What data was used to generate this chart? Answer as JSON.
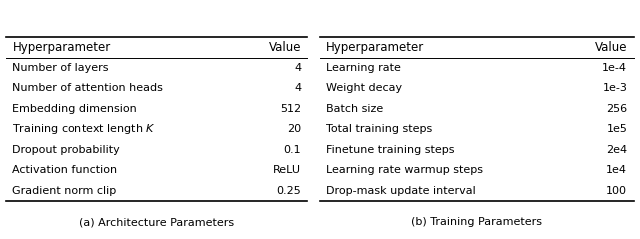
{
  "left_table": {
    "header": [
      "Hyperparameter",
      "Value"
    ],
    "rows": [
      [
        "Number of layers",
        "4"
      ],
      [
        "Number of attention heads",
        "4"
      ],
      [
        "Embedding dimension",
        "512"
      ],
      [
        "Training context length $K$",
        "20"
      ],
      [
        "Dropout probability",
        "0.1"
      ],
      [
        "Activation function",
        "ReLU"
      ],
      [
        "Gradient norm clip",
        "0.25"
      ]
    ],
    "caption": "(a) Architecture Parameters"
  },
  "right_table": {
    "header": [
      "Hyperparameter",
      "Value"
    ],
    "rows": [
      [
        "Learning rate",
        "1e-4"
      ],
      [
        "Weight decay",
        "1e-3"
      ],
      [
        "Batch size",
        "256"
      ],
      [
        "Total training steps",
        "1e5"
      ],
      [
        "Finetune training steps",
        "2e4"
      ],
      [
        "Learning rate warmup steps",
        "1e4"
      ],
      [
        "Drop-mask update interval",
        "100"
      ]
    ],
    "caption": "(b) Training Parameters"
  },
  "bg_color": "#ffffff",
  "text_color": "#000000",
  "line_color": "#000000",
  "header_fontsize": 8.5,
  "row_fontsize": 8.0,
  "caption_fontsize": 8.0,
  "thick_lw": 1.2,
  "thin_lw": 0.7
}
